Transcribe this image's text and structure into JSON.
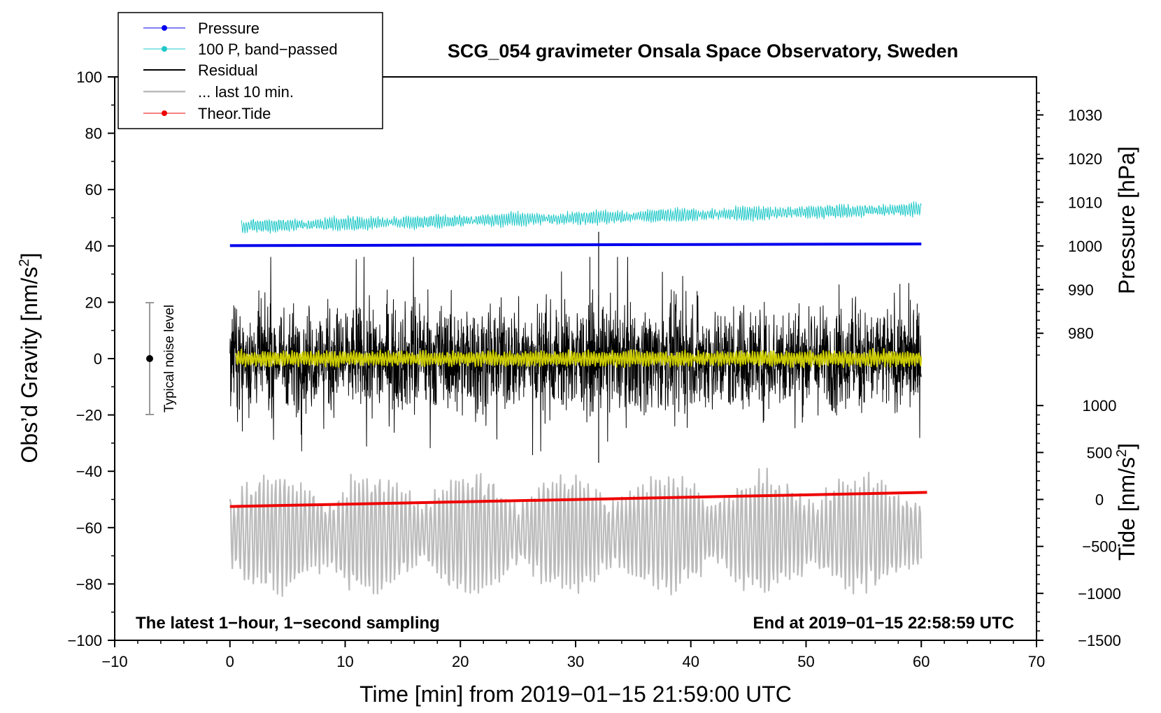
{
  "chart_data": {
    "type": "line",
    "title": "SCG_054 gravimeter Onsala Space Observatory, Sweden",
    "xlabel": "Time [min] from 2019−01−15 21:59:00 UTC",
    "ylabel_left": "Obs’d Gravity [nm/s",
    "ylabel_left_sup": "2",
    "ylabel_left_end": "]",
    "ylabel_right_pressure": "Pressure [hPa]",
    "ylabel_right_tide": "Tide [nm/s",
    "ylabel_right_tide_sup": "2",
    "ylabel_right_tide_end": "]",
    "xlim": [
      -10,
      70
    ],
    "ylim": [
      -100,
      100
    ],
    "x_ticks": [
      {
        "value": -10,
        "label": "−10"
      },
      {
        "value": 0,
        "label": "0"
      },
      {
        "value": 10,
        "label": "10"
      },
      {
        "value": 20,
        "label": "20"
      },
      {
        "value": 30,
        "label": "30"
      },
      {
        "value": 40,
        "label": "40"
      },
      {
        "value": 50,
        "label": "50"
      },
      {
        "value": 60,
        "label": "60"
      },
      {
        "value": 70,
        "label": "70"
      }
    ],
    "y_ticks": [
      {
        "value": 100,
        "label": "100"
      },
      {
        "value": 80,
        "label": "80"
      },
      {
        "value": 60,
        "label": "60"
      },
      {
        "value": 40,
        "label": "40"
      },
      {
        "value": 20,
        "label": "20"
      },
      {
        "value": 0,
        "label": "0"
      },
      {
        "value": -20,
        "label": "−20"
      },
      {
        "value": -40,
        "label": "−40"
      },
      {
        "value": -60,
        "label": "−60"
      },
      {
        "value": -80,
        "label": "−80"
      },
      {
        "value": -100,
        "label": "−100"
      }
    ],
    "pressure_axis": {
      "ticks": [
        {
          "value": 1030,
          "label": "1030"
        },
        {
          "value": 1020,
          "label": "1020"
        },
        {
          "value": 1010,
          "label": "1010"
        },
        {
          "value": 1000,
          "label": "1000"
        },
        {
          "value": 990,
          "label": "990"
        },
        {
          "value": 980,
          "label": "980"
        }
      ],
      "gravity_at_1000": 40,
      "gravity_per_hpa": 1.55
    },
    "tide_axis": {
      "ticks": [
        {
          "value": 1000,
          "label": "1000"
        },
        {
          "value": 500,
          "label": "500"
        },
        {
          "value": 0,
          "label": "0"
        },
        {
          "value": -500,
          "label": "−500"
        },
        {
          "value": -1000,
          "label": "−1000"
        },
        {
          "value": -1500,
          "label": "−1500"
        }
      ],
      "gravity_at_0": -50,
      "gravity_per_unit": 0.03333
    },
    "series": [
      {
        "name": "Pressure",
        "color": "#0000ee",
        "x": [
          0,
          60
        ],
        "values": [
          40.1,
          40.7
        ]
      },
      {
        "name": "100 P, band−passed",
        "color": "#1fc8c8",
        "x": [
          1,
          60
        ],
        "values": [
          47,
          53
        ]
      },
      {
        "name": "Residual",
        "color": "#000000",
        "x": [
          0,
          60
        ],
        "values": [
          0,
          0
        ],
        "amplitude": 25
      },
      {
        "name": "... last 10 min.",
        "color": "#bbbbbb",
        "x": [
          0,
          60
        ],
        "values": [
          -62,
          -62
        ],
        "amplitude": 20
      },
      {
        "name": "Theor.Tide",
        "color": "#ee0000",
        "x": [
          0,
          60.5
        ],
        "values": [
          -52.5,
          -47.5
        ]
      }
    ],
    "filtered_overlay": {
      "color": "#cccc00",
      "x": [
        0.5,
        60
      ],
      "values": [
        0,
        0
      ]
    },
    "noise_level": {
      "label": "Typical noise level",
      "x": -7,
      "center": 0,
      "low": -20,
      "high": 20
    },
    "annotations": {
      "left": "The latest 1−hour, 1−second sampling",
      "right": "End at 2019−01−15 22:58:59 UTC"
    },
    "legend_position": "top-left",
    "grid": false
  }
}
